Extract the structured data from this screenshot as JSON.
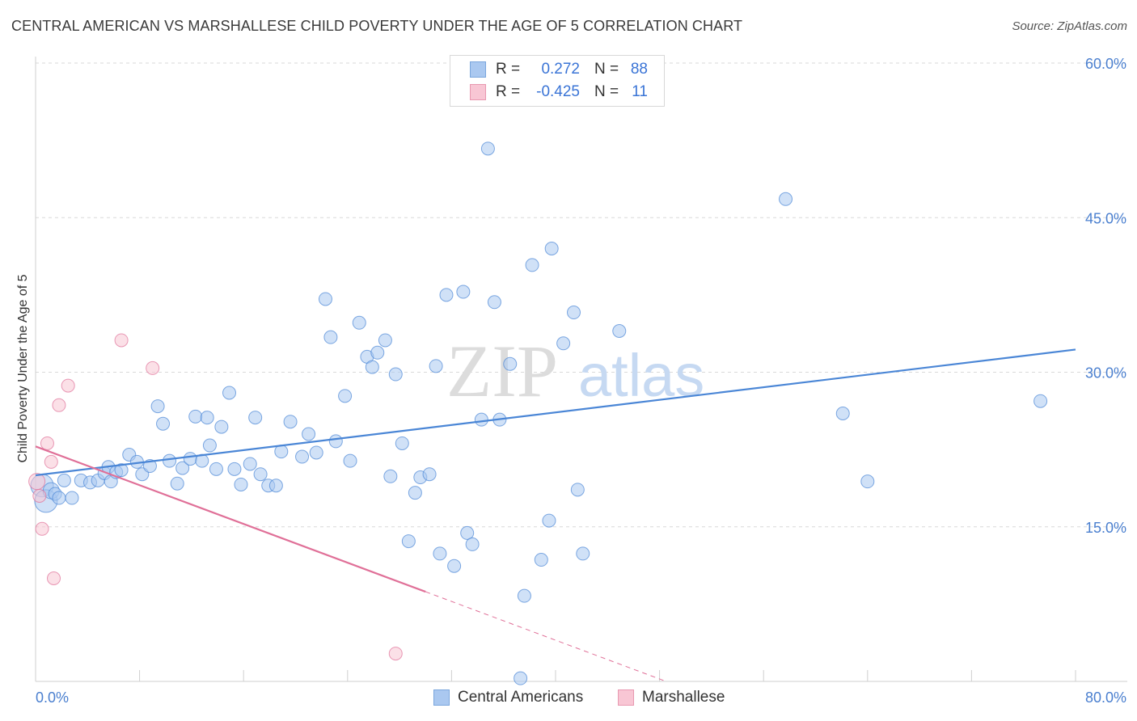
{
  "title": "CENTRAL AMERICAN VS MARSHALLESE CHILD POVERTY UNDER THE AGE OF 5 CORRELATION CHART",
  "source": "Source: ZipAtlas.com",
  "watermark": {
    "zip": "ZIP",
    "atlas": "atlas"
  },
  "legend": {
    "rows": [
      {
        "r_label": "R =",
        "r_value": "0.272",
        "n_label": "N =",
        "n_value": "88",
        "color": "#aac8f0",
        "border": "#7aa6dd"
      },
      {
        "r_label": "R =",
        "r_value": "-0.425",
        "n_label": "N =",
        "n_value": "11",
        "color": "#f8c6d4",
        "border": "#e898b0"
      }
    ]
  },
  "bottom_legend": [
    {
      "label": "Central Americans",
      "color": "#aac8f0",
      "border": "#7aa6dd"
    },
    {
      "label": "Marshallese",
      "color": "#f8c6d4",
      "border": "#e898b0"
    }
  ],
  "chart_data": {
    "type": "scatter",
    "title": "CENTRAL AMERICAN VS MARSHALLESE CHILD POVERTY UNDER THE AGE OF 5 CORRELATION CHART",
    "xlabel": "",
    "ylabel": "Child Poverty Under the Age of 5",
    "xlim": [
      0,
      80
    ],
    "ylim": [
      0,
      60
    ],
    "x_tick_labels": [
      "0.0%",
      "80.0%"
    ],
    "y_ticks": [
      15,
      30,
      45,
      60
    ],
    "y_tick_labels": [
      "15.0%",
      "30.0%",
      "45.0%",
      "60.0%"
    ],
    "grid": "horizontal dashed",
    "legend_position": "top-center",
    "series": [
      {
        "name": "Central Americans",
        "color": "#4a86d6",
        "fill": "#aac8f0",
        "points": [
          [
            0.5,
            19.0,
            14
          ],
          [
            0.8,
            17.5,
            14
          ],
          [
            1.2,
            18.5,
            10
          ],
          [
            1.5,
            18.2,
            8
          ],
          [
            1.8,
            17.8,
            8
          ],
          [
            2.2,
            19.5,
            8
          ],
          [
            2.8,
            17.8,
            8
          ],
          [
            3.5,
            19.5,
            8
          ],
          [
            4.2,
            19.3,
            8
          ],
          [
            4.8,
            19.5,
            8
          ],
          [
            5.3,
            20.2,
            8
          ],
          [
            5.6,
            20.8,
            8
          ],
          [
            5.8,
            19.4,
            8
          ],
          [
            6.2,
            20.3,
            8
          ],
          [
            6.6,
            20.5,
            8
          ],
          [
            7.2,
            22.0,
            8
          ],
          [
            7.8,
            21.3,
            8
          ],
          [
            8.2,
            20.1,
            8
          ],
          [
            8.8,
            20.9,
            8
          ],
          [
            9.4,
            26.7,
            8
          ],
          [
            9.8,
            25.0,
            8
          ],
          [
            10.3,
            21.4,
            8
          ],
          [
            10.9,
            19.2,
            8
          ],
          [
            11.3,
            20.7,
            8
          ],
          [
            11.9,
            21.6,
            8
          ],
          [
            12.3,
            25.7,
            8
          ],
          [
            12.8,
            21.4,
            8
          ],
          [
            13.4,
            22.9,
            8
          ],
          [
            13.9,
            20.6,
            8
          ],
          [
            14.3,
            24.7,
            8
          ],
          [
            14.9,
            28.0,
            8
          ],
          [
            15.3,
            20.6,
            8
          ],
          [
            15.8,
            19.1,
            8
          ],
          [
            16.5,
            21.1,
            8
          ],
          [
            16.9,
            25.6,
            8
          ],
          [
            17.3,
            20.1,
            8
          ],
          [
            17.9,
            19.0,
            8
          ],
          [
            18.5,
            19.0,
            8
          ],
          [
            18.9,
            22.3,
            8
          ],
          [
            19.6,
            25.2,
            8
          ],
          [
            20.5,
            21.8,
            8
          ],
          [
            21.0,
            24.0,
            8
          ],
          [
            21.6,
            22.2,
            8
          ],
          [
            22.3,
            37.1,
            8
          ],
          [
            22.7,
            33.4,
            8
          ],
          [
            23.1,
            23.3,
            8
          ],
          [
            23.8,
            27.7,
            8
          ],
          [
            24.2,
            21.4,
            8
          ],
          [
            24.9,
            34.8,
            8
          ],
          [
            25.5,
            31.5,
            8
          ],
          [
            25.9,
            30.5,
            8
          ],
          [
            26.3,
            31.9,
            8
          ],
          [
            26.9,
            33.1,
            8
          ],
          [
            27.3,
            19.9,
            8
          ],
          [
            27.7,
            29.8,
            8
          ],
          [
            28.2,
            23.1,
            8
          ],
          [
            28.7,
            13.6,
            8
          ],
          [
            29.2,
            18.3,
            8
          ],
          [
            29.6,
            19.8,
            8
          ],
          [
            30.3,
            20.1,
            8
          ],
          [
            30.8,
            30.6,
            8
          ],
          [
            31.1,
            12.4,
            8
          ],
          [
            31.6,
            37.5,
            8
          ],
          [
            32.2,
            11.2,
            8
          ],
          [
            32.9,
            37.8,
            8
          ],
          [
            33.2,
            14.4,
            8
          ],
          [
            33.6,
            13.3,
            8
          ],
          [
            34.3,
            25.4,
            8
          ],
          [
            34.8,
            51.7,
            8
          ],
          [
            35.3,
            36.8,
            8
          ],
          [
            35.7,
            25.4,
            8
          ],
          [
            36.5,
            30.8,
            8
          ],
          [
            37.6,
            8.3,
            8
          ],
          [
            37.3,
            0.3,
            8
          ],
          [
            38.2,
            40.4,
            8
          ],
          [
            38.9,
            11.8,
            8
          ],
          [
            39.5,
            15.6,
            8
          ],
          [
            39.7,
            42.0,
            8
          ],
          [
            40.6,
            32.8,
            8
          ],
          [
            41.4,
            35.8,
            8
          ],
          [
            41.7,
            18.6,
            8
          ],
          [
            42.1,
            12.4,
            8
          ],
          [
            13.2,
            25.6,
            8
          ],
          [
            44.9,
            34.0,
            8
          ],
          [
            57.7,
            46.8,
            8
          ],
          [
            62.1,
            26.0,
            8
          ],
          [
            64.0,
            19.4,
            8
          ],
          [
            77.3,
            27.2,
            8
          ]
        ],
        "trend": {
          "x": [
            0,
            80
          ],
          "y": [
            20.0,
            32.2
          ]
        }
      },
      {
        "name": "Marshallese",
        "color": "#e07098",
        "fill": "#f8c6d4",
        "points": [
          [
            0.1,
            19.4,
            10
          ],
          [
            0.3,
            18.0,
            8
          ],
          [
            0.5,
            14.8,
            8
          ],
          [
            0.9,
            23.1,
            8
          ],
          [
            1.2,
            21.3,
            8
          ],
          [
            1.4,
            10.0,
            8
          ],
          [
            1.8,
            26.8,
            8
          ],
          [
            2.5,
            28.7,
            8
          ],
          [
            6.6,
            33.1,
            8
          ],
          [
            9.0,
            30.4,
            8
          ],
          [
            27.7,
            2.7,
            8
          ]
        ],
        "trend": {
          "x": [
            0,
            30
          ],
          "y": [
            22.8,
            8.7
          ]
        },
        "trend_extension": {
          "x": [
            30,
            48.5
          ],
          "y": [
            8.7,
            0.0
          ]
        }
      }
    ]
  }
}
